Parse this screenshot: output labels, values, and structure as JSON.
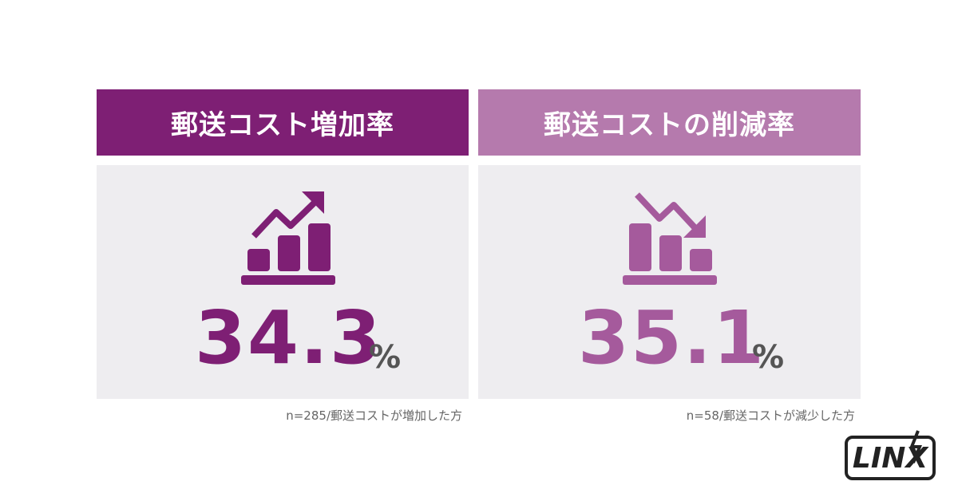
{
  "panels": [
    {
      "title": "郵送コスト増加率",
      "value": 34.3,
      "unit": "%",
      "note": "n=285/郵送コストが増加した方"
    },
    {
      "title": "郵送コストの削減率",
      "value": 35.1,
      "unit": "%",
      "note": "n=58/郵送コストが減少した方"
    }
  ],
  "logo": "LINX"
}
